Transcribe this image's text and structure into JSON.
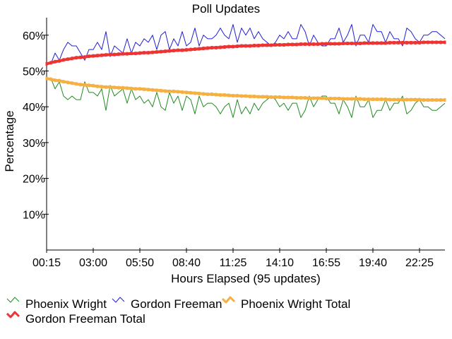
{
  "chart_data": {
    "type": "line",
    "title": "Poll Updates",
    "xlabel": "Hours Elapsed (95 updates)",
    "ylabel": "Percentage",
    "x_ticks": [
      "00:15",
      "03:00",
      "05:50",
      "08:40",
      "11:25",
      "14:10",
      "16:55",
      "19:40",
      "22:25"
    ],
    "y_ticks": [
      "10%",
      "20%",
      "30%",
      "40%",
      "50%",
      "60%"
    ],
    "ylim": [
      0,
      65
    ],
    "grid": false,
    "legend_position": "bottom-left",
    "series": [
      {
        "name": "Phoenix Wright",
        "color": "#228b22",
        "style": "thin",
        "values": [
          48,
          48,
          45,
          47,
          43,
          42,
          43,
          42,
          42,
          47,
          44,
          44,
          43,
          45,
          39,
          46,
          43,
          44,
          45,
          41,
          45,
          42,
          43,
          41,
          42,
          40,
          44,
          40,
          39,
          44,
          41,
          43,
          39,
          43,
          42,
          38,
          43,
          40,
          41,
          41,
          40,
          38,
          40,
          41,
          37,
          42,
          38,
          40,
          38,
          41,
          39,
          41,
          42,
          43,
          42,
          40,
          41,
          39,
          41,
          41,
          37,
          39,
          43,
          40,
          42,
          43,
          43,
          41,
          41,
          38,
          42,
          40,
          37,
          43,
          40,
          40,
          42,
          37,
          39,
          39,
          42,
          39,
          41,
          41,
          43,
          38,
          39,
          41,
          42,
          40,
          40,
          39,
          39,
          40,
          41
        ]
      },
      {
        "name": "Gordon Freeman",
        "color": "#1f1fd8",
        "style": "thin",
        "values": [
          52,
          52,
          55,
          53,
          56,
          58,
          57,
          57,
          55,
          53,
          56,
          56,
          58,
          56,
          61,
          54,
          57,
          56,
          55,
          59,
          55,
          58,
          57,
          59,
          58,
          60,
          56,
          60,
          61,
          56,
          59,
          57,
          61,
          57,
          58,
          62,
          57,
          60,
          59,
          59,
          60,
          62,
          60,
          59,
          63,
          58,
          62,
          60,
          62,
          59,
          61,
          59,
          58,
          57,
          58,
          60,
          59,
          61,
          59,
          59,
          63,
          61,
          57,
          60,
          58,
          57,
          57,
          59,
          59,
          62,
          58,
          60,
          63,
          57,
          60,
          60,
          58,
          63,
          61,
          61,
          58,
          61,
          59,
          59,
          57,
          62,
          61,
          59,
          58,
          60,
          60,
          61,
          61,
          60,
          59
        ]
      },
      {
        "name": "Phoenix Wright Total",
        "color": "#f5b041",
        "style": "thick",
        "values": [
          47.9,
          47.7,
          47.4,
          47.3,
          47.0,
          46.8,
          46.6,
          46.4,
          46.2,
          46.1,
          46.0,
          45.9,
          45.7,
          45.6,
          45.5,
          45.5,
          45.4,
          45.3,
          45.3,
          45.2,
          45.1,
          45.0,
          45.0,
          44.9,
          44.8,
          44.7,
          44.6,
          44.5,
          44.4,
          44.3,
          44.3,
          44.2,
          44.1,
          44.0,
          43.9,
          43.8,
          43.7,
          43.6,
          43.5,
          43.5,
          43.4,
          43.3,
          43.3,
          43.2,
          43.1,
          43.1,
          43.0,
          43.0,
          42.9,
          42.9,
          42.8,
          42.8,
          42.8,
          42.7,
          42.7,
          42.7,
          42.6,
          42.6,
          42.6,
          42.5,
          42.5,
          42.5,
          42.4,
          42.4,
          42.4,
          42.4,
          42.3,
          42.3,
          42.3,
          42.3,
          42.2,
          42.2,
          42.2,
          42.2,
          42.2,
          42.1,
          42.1,
          42.1,
          42.1,
          42.1,
          42.1,
          42.0,
          42.0,
          42.0,
          42.0,
          42.0,
          42.0,
          42.0,
          42.0,
          41.9,
          41.9,
          41.9,
          41.9,
          41.9,
          41.9
        ]
      },
      {
        "name": "Gordon Freeman Total",
        "color": "#ee3333",
        "style": "thick",
        "values": [
          52.0,
          52.3,
          52.6,
          52.8,
          53.1,
          53.3,
          53.5,
          53.7,
          53.8,
          53.9,
          54.1,
          54.2,
          54.3,
          54.4,
          54.5,
          54.6,
          54.6,
          54.7,
          54.8,
          54.8,
          54.9,
          54.9,
          55.0,
          55.1,
          55.1,
          55.2,
          55.3,
          55.4,
          55.5,
          55.6,
          55.7,
          55.8,
          55.8,
          55.9,
          56.0,
          56.1,
          56.2,
          56.3,
          56.4,
          56.5,
          56.5,
          56.6,
          56.7,
          56.8,
          56.8,
          56.9,
          57.0,
          57.0,
          57.0,
          57.1,
          57.1,
          57.2,
          57.2,
          57.2,
          57.3,
          57.3,
          57.3,
          57.4,
          57.4,
          57.4,
          57.5,
          57.5,
          57.5,
          57.5,
          57.5,
          57.6,
          57.6,
          57.6,
          57.6,
          57.6,
          57.7,
          57.7,
          57.7,
          57.7,
          57.7,
          57.8,
          57.8,
          57.8,
          57.8,
          57.8,
          57.8,
          57.9,
          57.9,
          57.9,
          57.9,
          57.9,
          57.9,
          57.9,
          57.9,
          58.0,
          58.0,
          58.0,
          58.0,
          58.0,
          58.0
        ]
      }
    ]
  }
}
